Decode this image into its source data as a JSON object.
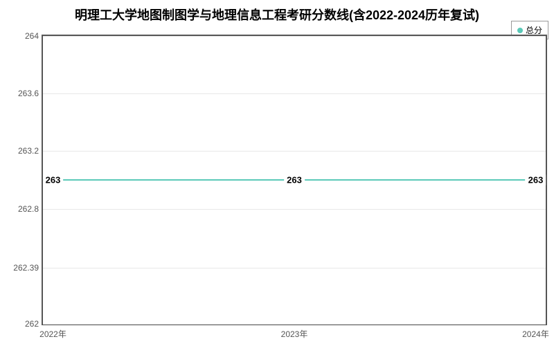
{
  "chart": {
    "type": "line",
    "title": "明理工大学地图制图学与地理信息工程考研分数线(含2022-2024历年复试)",
    "title_fontsize": 18,
    "title_fontweight": "bold",
    "title_color": "#000000",
    "background_color": "#ffffff",
    "plot_border_color": "#555555",
    "grid_color": "#e8e8e8",
    "categories": [
      "2022年",
      "2023年",
      "2024年"
    ],
    "x_positions_pct": [
      2,
      50,
      98
    ],
    "series": {
      "name": "总分",
      "values": [
        263,
        263,
        263
      ],
      "color": "#5bc9b8",
      "line_width": 2,
      "marker_size": 8
    },
    "ylim": [
      262,
      264
    ],
    "yticks": [
      262,
      262.39,
      262.8,
      263.2,
      263.6,
      264
    ],
    "ytick_labels": [
      "262",
      "262.39",
      "262.8",
      "263.2",
      "263.6",
      "264"
    ],
    "axis_label_fontsize": 12,
    "axis_label_color": "#555555",
    "legend": {
      "position": "top-right",
      "border_color": "#999999",
      "fontsize": 12
    },
    "data_label_fontsize": 13,
    "data_label_fontweight": "bold"
  }
}
